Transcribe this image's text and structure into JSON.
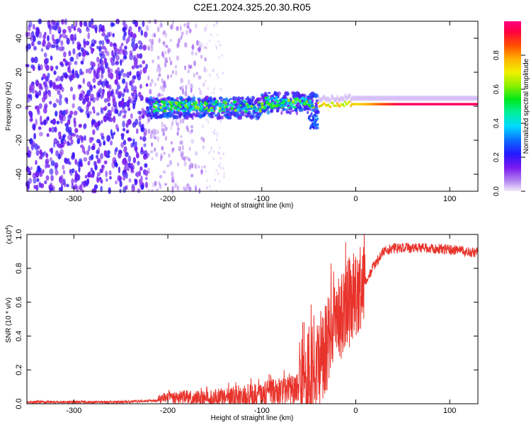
{
  "title": "C2E1.2024.325.20.30.R05",
  "chart_data": [
    {
      "type": "heatmap",
      "title": "C2E1.2024.325.20.30.R05",
      "xlabel": "Height of straight line (km)",
      "ylabel": "Frequency (Hz)",
      "xlim": [
        -350,
        130
      ],
      "ylim": [
        -50,
        50
      ],
      "xticks": [
        -300,
        -200,
        -100,
        0,
        100
      ],
      "yticks": [
        -40,
        -20,
        0,
        20,
        40
      ],
      "colorbar": {
        "label": "Normalized spectral amplitude",
        "range": [
          0,
          1
        ],
        "ticks": [
          0.0,
          0.2,
          0.4,
          0.6,
          0.8
        ],
        "colormap": "rainbow (violet → blue → cyan → green → yellow → red → magenta)"
      },
      "regions": [
        {
          "x": [
            -350,
            -222
          ],
          "freq": [
            -50,
            50
          ],
          "amplitude": "low (noise)",
          "density": "dense"
        },
        {
          "x": [
            -222,
            -160
          ],
          "freq": [
            -50,
            50
          ],
          "amplitude": "very low (noise)",
          "density": "sparse"
        },
        {
          "x": [
            -222,
            -40
          ],
          "freq_center": 0,
          "freq_halfwidth": 6,
          "amplitude": "0.2-0.6"
        },
        {
          "x": [
            -40,
            130
          ],
          "freq_center": 1,
          "freq_halfwidth": 2,
          "amplitude": "0.6-1.0"
        }
      ]
    },
    {
      "type": "line",
      "xlabel": "Height of straight line (km)",
      "ylabel": "SNR (10 * v/v)",
      "y_scale_label": "(x10",
      "y_scale_exponent": "4",
      "y_scale_suffix": ")",
      "xlim": [
        -350,
        130
      ],
      "ylim": [
        0,
        1.0
      ],
      "xticks": [
        -300,
        -200,
        -100,
        0,
        100
      ],
      "yticks": [
        0.0,
        0.2,
        0.4,
        0.6,
        0.8,
        1.0
      ],
      "series": [
        {
          "color": "#e8332b",
          "x": [
            -350,
            -300,
            -250,
            -210,
            -200,
            -150,
            -120,
            -100,
            -80,
            -60,
            -50,
            -40,
            -30,
            -25,
            -20,
            -15,
            -10,
            -5,
            0,
            10,
            20,
            30,
            40,
            60,
            80,
            100,
            120,
            130
          ],
          "y": [
            0.01,
            0.01,
            0.01,
            0.02,
            0.04,
            0.03,
            0.04,
            0.05,
            0.07,
            0.1,
            0.15,
            0.25,
            0.35,
            0.5,
            0.55,
            0.5,
            0.6,
            0.62,
            0.65,
            0.72,
            0.82,
            0.9,
            0.92,
            0.92,
            0.92,
            0.91,
            0.9,
            0.89
          ]
        }
      ]
    }
  ]
}
